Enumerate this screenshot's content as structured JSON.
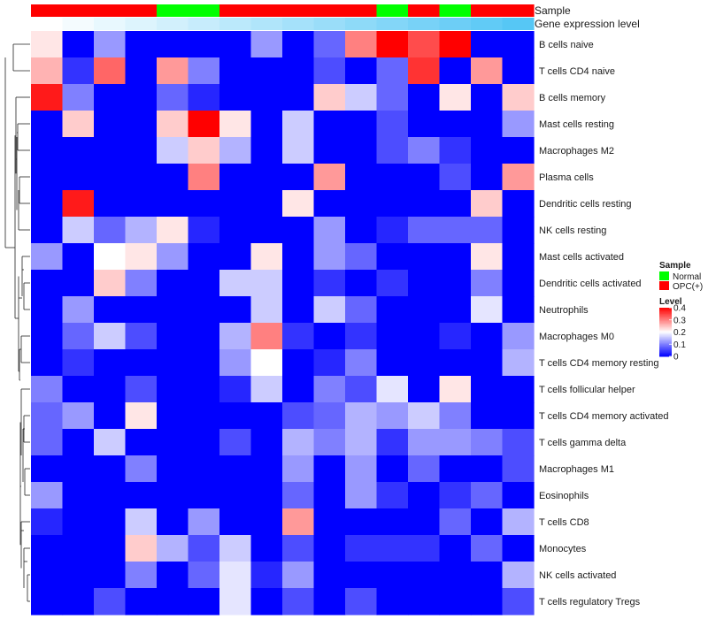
{
  "chart_data": {
    "type": "heatmap",
    "annotations": {
      "sample_label": "Sample",
      "level_label": "Gene expression level",
      "sample_groups": [
        "OPC(+)",
        "OPC(+)",
        "OPC(+)",
        "OPC(+)",
        "Normal",
        "Normal",
        "OPC(+)",
        "OPC(+)",
        "OPC(+)",
        "OPC(+)",
        "OPC(+)",
        "Normal",
        "OPC(+)",
        "Normal",
        "OPC(+)",
        "OPC(+)"
      ],
      "level_values": [
        0.0,
        0.02,
        0.04,
        0.06,
        0.08,
        0.1,
        0.12,
        0.14,
        0.16,
        0.18,
        0.2,
        0.22,
        0.24,
        0.26,
        0.28,
        0.3
      ]
    },
    "rows": [
      "B cells naive",
      "T cells CD4 naive",
      "B cells memory",
      "Mast cells resting",
      "Macrophages M2",
      "Plasma cells",
      "Dendritic cells resting",
      "NK cells resting",
      "Mast cells activated",
      "Dendritic cells activated",
      "Neutrophils",
      "Macrophages M0",
      "T cells CD4 memory resting",
      "T cells follicular helper",
      "T cells CD4 memory activated",
      "T cells gamma delta",
      "Macrophages M1",
      "Eosinophils",
      "T cells CD8",
      "Monocytes",
      "NK cells activated",
      "T cells regulatory  Tregs"
    ],
    "values": [
      [
        0.22,
        0.0,
        0.12,
        0.0,
        0.0,
        0.0,
        0.0,
        0.12,
        0.0,
        0.08,
        0.3,
        0.4,
        0.34,
        0.4,
        0.0,
        0.0
      ],
      [
        0.26,
        0.04,
        0.32,
        0.0,
        0.28,
        0.1,
        0.0,
        0.0,
        0.0,
        0.06,
        0.0,
        0.08,
        0.36,
        0.0,
        0.28,
        0.0
      ],
      [
        0.38,
        0.1,
        0.0,
        0.0,
        0.08,
        0.03,
        0.0,
        0.0,
        0.0,
        0.24,
        0.16,
        0.08,
        0.0,
        0.22,
        0.0,
        0.24
      ],
      [
        0.0,
        0.24,
        0.0,
        0.0,
        0.24,
        0.4,
        0.22,
        0.0,
        0.16,
        0.0,
        0.0,
        0.06,
        0.0,
        0.0,
        0.0,
        0.12
      ],
      [
        0.0,
        0.0,
        0.0,
        0.0,
        0.16,
        0.24,
        0.14,
        0.0,
        0.16,
        0.0,
        0.0,
        0.06,
        0.1,
        0.04,
        0.0,
        0.0
      ],
      [
        0.0,
        0.0,
        0.0,
        0.0,
        0.0,
        0.3,
        0.0,
        0.0,
        0.0,
        0.28,
        0.0,
        0.0,
        0.0,
        0.06,
        0.0,
        0.28
      ],
      [
        0.0,
        0.38,
        0.0,
        0.0,
        0.0,
        0.0,
        0.0,
        0.0,
        0.22,
        0.0,
        0.0,
        0.0,
        0.0,
        0.0,
        0.24,
        0.0
      ],
      [
        0.0,
        0.16,
        0.08,
        0.14,
        0.22,
        0.03,
        0.0,
        0.0,
        0.0,
        0.12,
        0.0,
        0.03,
        0.08,
        0.08,
        0.08,
        0.0
      ],
      [
        0.12,
        0.0,
        0.2,
        0.22,
        0.12,
        0.0,
        0.0,
        0.22,
        0.0,
        0.12,
        0.08,
        0.0,
        0.0,
        0.0,
        0.22,
        0.0
      ],
      [
        0.0,
        0.0,
        0.24,
        0.1,
        0.0,
        0.0,
        0.16,
        0.16,
        0.0,
        0.04,
        0.0,
        0.04,
        0.0,
        0.0,
        0.1,
        0.0
      ],
      [
        0.0,
        0.12,
        0.0,
        0.0,
        0.0,
        0.0,
        0.0,
        0.16,
        0.0,
        0.16,
        0.08,
        0.0,
        0.0,
        0.0,
        0.18,
        0.0
      ],
      [
        0.0,
        0.08,
        0.16,
        0.06,
        0.0,
        0.0,
        0.14,
        0.3,
        0.04,
        0.0,
        0.04,
        0.0,
        0.0,
        0.03,
        0.0,
        0.12
      ],
      [
        0.0,
        0.04,
        0.0,
        0.0,
        0.0,
        0.0,
        0.12,
        0.2,
        0.0,
        0.03,
        0.1,
        0.0,
        0.0,
        0.0,
        0.0,
        0.14
      ],
      [
        0.1,
        0.0,
        0.0,
        0.06,
        0.0,
        0.0,
        0.03,
        0.16,
        0.0,
        0.1,
        0.06,
        0.18,
        0.0,
        0.22,
        0.0,
        0.0
      ],
      [
        0.08,
        0.12,
        0.0,
        0.22,
        0.0,
        0.0,
        0.0,
        0.0,
        0.06,
        0.08,
        0.14,
        0.12,
        0.16,
        0.1,
        0.0,
        0.0
      ],
      [
        0.08,
        0.0,
        0.16,
        0.0,
        0.0,
        0.0,
        0.06,
        0.0,
        0.14,
        0.1,
        0.14,
        0.04,
        0.12,
        0.12,
        0.1,
        0.06
      ],
      [
        0.0,
        0.0,
        0.0,
        0.1,
        0.0,
        0.0,
        0.0,
        0.0,
        0.12,
        0.0,
        0.12,
        0.0,
        0.08,
        0.0,
        0.0,
        0.06
      ],
      [
        0.12,
        0.0,
        0.0,
        0.0,
        0.0,
        0.0,
        0.0,
        0.0,
        0.08,
        0.0,
        0.12,
        0.04,
        0.0,
        0.04,
        0.08,
        0.0
      ],
      [
        0.03,
        0.0,
        0.0,
        0.16,
        0.0,
        0.12,
        0.0,
        0.0,
        0.28,
        0.0,
        0.0,
        0.0,
        0.0,
        0.08,
        0.0,
        0.14
      ],
      [
        0.0,
        0.0,
        0.0,
        0.24,
        0.14,
        0.06,
        0.16,
        0.0,
        0.06,
        0.0,
        0.04,
        0.04,
        0.04,
        0.0,
        0.08,
        0.0
      ],
      [
        0.0,
        0.0,
        0.0,
        0.1,
        0.0,
        0.08,
        0.18,
        0.03,
        0.12,
        0.0,
        0.0,
        0.0,
        0.0,
        0.0,
        0.0,
        0.14
      ],
      [
        0.0,
        0.0,
        0.06,
        0.0,
        0.0,
        0.0,
        0.18,
        0.0,
        0.06,
        0.0,
        0.06,
        0.0,
        0.0,
        0.0,
        0.0,
        0.06
      ]
    ],
    "color_scale": {
      "low": "#0000ff",
      "mid": "#ffffff",
      "high": "#ff0000",
      "min": 0,
      "mid_value": 0.2,
      "max": 0.4
    },
    "group_colors": {
      "Normal": "#00ff00",
      "OPC(+)": "#ff0000"
    },
    "legend": {
      "sample_title": "Sample",
      "sample_items": [
        {
          "label": "Normal",
          "color": "#00ff00"
        },
        {
          "label": "OPC(+)",
          "color": "#ff0000"
        }
      ],
      "level_title": "Level",
      "level_ticks": [
        "0",
        "0.1",
        "0.2",
        "0.3",
        "0.4"
      ],
      "placement": "right"
    },
    "dendrogram": "rows"
  }
}
